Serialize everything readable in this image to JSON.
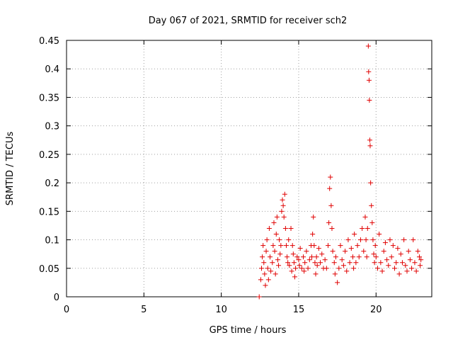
{
  "chart_data": {
    "type": "scatter",
    "title": "Day 067 of 2021, SRMTID for receiver sch2",
    "xlabel": "GPS time / hours",
    "ylabel": "SRMTID / TECUs",
    "xlim": [
      0,
      23.6
    ],
    "ylim": [
      0,
      0.45
    ],
    "xticks": [
      0,
      5,
      10,
      15,
      20
    ],
    "xtick_labels": [
      "0",
      "5",
      "10",
      "15",
      "20"
    ],
    "yticks": [
      0,
      0.05,
      0.1,
      0.15,
      0.2,
      0.25,
      0.3,
      0.35,
      0.4,
      0.45
    ],
    "ytick_labels": [
      "0",
      "0.05",
      "0.1",
      "0.15",
      "0.2",
      "0.25",
      "0.3",
      "0.35",
      "0.4",
      "0.45"
    ],
    "grid": true,
    "marker": "+",
    "color": "#e00000",
    "series": [
      {
        "name": "SRMTID",
        "points": [
          [
            12.45,
            0.0
          ],
          [
            12.55,
            0.03
          ],
          [
            12.6,
            0.05
          ],
          [
            12.65,
            0.07
          ],
          [
            12.7,
            0.09
          ],
          [
            12.75,
            0.06
          ],
          [
            12.8,
            0.04
          ],
          [
            12.85,
            0.02
          ],
          [
            12.9,
            0.08
          ],
          [
            12.95,
            0.1
          ],
          [
            13.0,
            0.05
          ],
          [
            13.05,
            0.03
          ],
          [
            13.1,
            0.12
          ],
          [
            13.15,
            0.07
          ],
          [
            13.2,
            0.045
          ],
          [
            13.3,
            0.06
          ],
          [
            13.35,
            0.09
          ],
          [
            13.4,
            0.13
          ],
          [
            13.45,
            0.08
          ],
          [
            13.5,
            0.04
          ],
          [
            13.55,
            0.11
          ],
          [
            13.6,
            0.14
          ],
          [
            13.65,
            0.065
          ],
          [
            13.7,
            0.055
          ],
          [
            13.75,
            0.1
          ],
          [
            13.8,
            0.075
          ],
          [
            13.85,
            0.09
          ],
          [
            13.9,
            0.15
          ],
          [
            13.95,
            0.17
          ],
          [
            14.0,
            0.16
          ],
          [
            14.05,
            0.14
          ],
          [
            14.1,
            0.18
          ],
          [
            14.15,
            0.12
          ],
          [
            14.2,
            0.09
          ],
          [
            14.25,
            0.07
          ],
          [
            14.3,
            0.06
          ],
          [
            14.35,
            0.1
          ],
          [
            14.4,
            0.055
          ],
          [
            14.5,
            0.12
          ],
          [
            14.55,
            0.045
          ],
          [
            14.6,
            0.09
          ],
          [
            14.65,
            0.075
          ],
          [
            14.7,
            0.06
          ],
          [
            14.75,
            0.035
          ],
          [
            14.8,
            0.05
          ],
          [
            14.9,
            0.07
          ],
          [
            15.0,
            0.065
          ],
          [
            15.05,
            0.055
          ],
          [
            15.1,
            0.085
          ],
          [
            15.2,
            0.05
          ],
          [
            15.3,
            0.07
          ],
          [
            15.35,
            0.045
          ],
          [
            15.4,
            0.06
          ],
          [
            15.5,
            0.08
          ],
          [
            15.6,
            0.05
          ],
          [
            15.7,
            0.065
          ],
          [
            15.8,
            0.09
          ],
          [
            15.85,
            0.07
          ],
          [
            15.9,
            0.11
          ],
          [
            15.95,
            0.14
          ],
          [
            16.0,
            0.09
          ],
          [
            16.05,
            0.06
          ],
          [
            16.1,
            0.04
          ],
          [
            16.15,
            0.07
          ],
          [
            16.2,
            0.055
          ],
          [
            16.3,
            0.085
          ],
          [
            16.4,
            0.06
          ],
          [
            16.5,
            0.075
          ],
          [
            16.6,
            0.05
          ],
          [
            16.7,
            0.065
          ],
          [
            16.8,
            0.05
          ],
          [
            16.9,
            0.09
          ],
          [
            16.95,
            0.13
          ],
          [
            17.0,
            0.19
          ],
          [
            17.05,
            0.21
          ],
          [
            17.1,
            0.16
          ],
          [
            17.15,
            0.12
          ],
          [
            17.2,
            0.08
          ],
          [
            17.3,
            0.06
          ],
          [
            17.35,
            0.04
          ],
          [
            17.4,
            0.07
          ],
          [
            17.5,
            0.025
          ],
          [
            17.6,
            0.05
          ],
          [
            17.7,
            0.09
          ],
          [
            17.8,
            0.065
          ],
          [
            17.9,
            0.055
          ],
          [
            18.0,
            0.08
          ],
          [
            18.1,
            0.045
          ],
          [
            18.2,
            0.1
          ],
          [
            18.3,
            0.06
          ],
          [
            18.4,
            0.085
          ],
          [
            18.5,
            0.07
          ],
          [
            18.55,
            0.05
          ],
          [
            18.6,
            0.11
          ],
          [
            18.7,
            0.06
          ],
          [
            18.8,
            0.09
          ],
          [
            18.9,
            0.07
          ],
          [
            19.0,
            0.1
          ],
          [
            19.1,
            0.12
          ],
          [
            19.2,
            0.08
          ],
          [
            19.3,
            0.14
          ],
          [
            19.35,
            0.1
          ],
          [
            19.4,
            0.07
          ],
          [
            19.45,
            0.12
          ],
          [
            19.5,
            0.44
          ],
          [
            19.52,
            0.395
          ],
          [
            19.55,
            0.38
          ],
          [
            19.57,
            0.345
          ],
          [
            19.6,
            0.275
          ],
          [
            19.62,
            0.265
          ],
          [
            19.65,
            0.2
          ],
          [
            19.7,
            0.16
          ],
          [
            19.75,
            0.13
          ],
          [
            19.8,
            0.1
          ],
          [
            19.85,
            0.075
          ],
          [
            19.9,
            0.06
          ],
          [
            19.95,
            0.09
          ],
          [
            20.0,
            0.07
          ],
          [
            20.1,
            0.05
          ],
          [
            20.2,
            0.11
          ],
          [
            20.3,
            0.06
          ],
          [
            20.4,
            0.045
          ],
          [
            20.5,
            0.08
          ],
          [
            20.6,
            0.095
          ],
          [
            20.7,
            0.065
          ],
          [
            20.8,
            0.055
          ],
          [
            20.9,
            0.1
          ],
          [
            21.0,
            0.07
          ],
          [
            21.1,
            0.09
          ],
          [
            21.2,
            0.05
          ],
          [
            21.3,
            0.06
          ],
          [
            21.4,
            0.085
          ],
          [
            21.5,
            0.04
          ],
          [
            21.6,
            0.075
          ],
          [
            21.7,
            0.06
          ],
          [
            21.8,
            0.1
          ],
          [
            21.9,
            0.055
          ],
          [
            22.0,
            0.045
          ],
          [
            22.1,
            0.08
          ],
          [
            22.2,
            0.065
          ],
          [
            22.3,
            0.05
          ],
          [
            22.4,
            0.1
          ],
          [
            22.5,
            0.06
          ],
          [
            22.6,
            0.045
          ],
          [
            22.7,
            0.08
          ],
          [
            22.8,
            0.07
          ],
          [
            22.85,
            0.055
          ],
          [
            22.9,
            0.065
          ]
        ]
      }
    ]
  }
}
